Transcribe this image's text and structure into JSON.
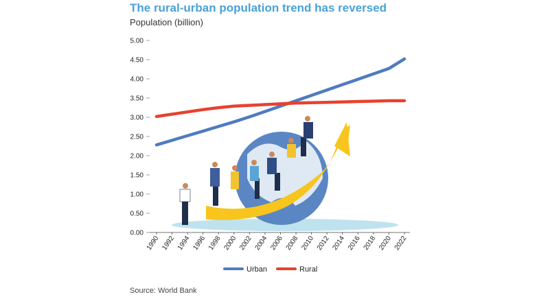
{
  "title": "The rural-urban population trend has reversed",
  "subtitle": "Population (billion)",
  "source": "Source: World Bank",
  "colors": {
    "urban": "#4f7bc0",
    "rural": "#e8412f",
    "title": "#4aa1d6"
  },
  "chart_data": {
    "type": "line",
    "title": "The rural-urban population trend has reversed",
    "ylabel": "Population (billion)",
    "xlabel": "",
    "ylim": [
      0,
      5
    ],
    "yticks": [
      "0.00",
      "0.50",
      "1.00",
      "1.50",
      "2.00",
      "2.50",
      "3.00",
      "3.50",
      "4.00",
      "4.50",
      "5.00"
    ],
    "x": [
      1990,
      1992,
      1994,
      1996,
      1998,
      2000,
      2002,
      2004,
      2006,
      2008,
      2010,
      2012,
      2014,
      2016,
      2018,
      2020,
      2022
    ],
    "legend_position": "bottom",
    "grid": false,
    "series": [
      {
        "name": "Urban",
        "color": "#4f7bc0",
        "values": [
          2.28,
          2.4,
          2.52,
          2.64,
          2.76,
          2.88,
          3.01,
          3.15,
          3.29,
          3.43,
          3.57,
          3.71,
          3.85,
          3.99,
          4.13,
          4.27,
          4.52
        ]
      },
      {
        "name": "Rural",
        "color": "#e8412f",
        "values": [
          3.02,
          3.08,
          3.14,
          3.2,
          3.25,
          3.29,
          3.31,
          3.33,
          3.35,
          3.37,
          3.38,
          3.39,
          3.4,
          3.41,
          3.42,
          3.43,
          3.43
        ]
      }
    ]
  }
}
